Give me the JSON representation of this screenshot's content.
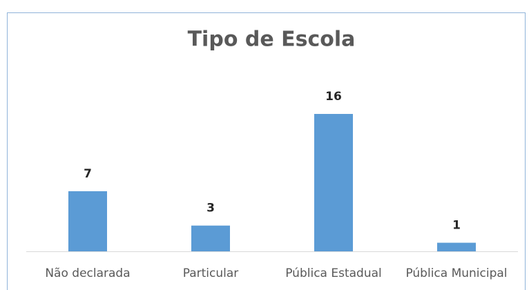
{
  "chart_data": {
    "type": "bar",
    "title": "Tipo de Escola",
    "categories": [
      "Não declarada",
      "Particular",
      "Pública Estadual",
      "Pública Municipal"
    ],
    "values": [
      7,
      3,
      16,
      1
    ],
    "color": "#5b9bd5",
    "data_labels": true
  }
}
